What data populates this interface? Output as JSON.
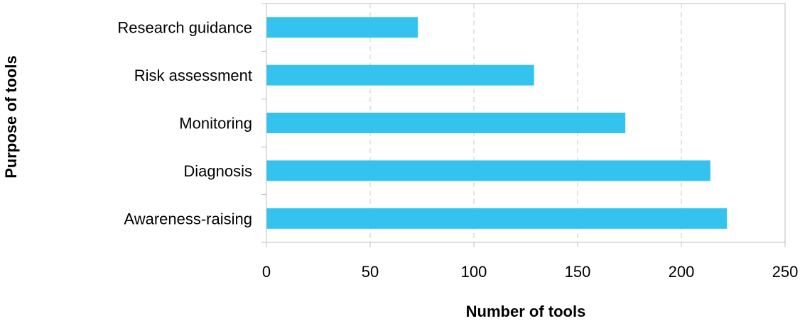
{
  "chart_data": {
    "type": "bar",
    "orientation": "horizontal",
    "title": "",
    "xlabel": "Number of tools",
    "ylabel": "Purpose of tools",
    "categories": [
      "Research guidance",
      "Risk assessment",
      "Monitoring",
      "Diagnosis",
      "Awareness-raising"
    ],
    "values": [
      73,
      129,
      173,
      214,
      222
    ],
    "xlim": [
      0,
      250
    ],
    "xticks": [
      0,
      50,
      100,
      150,
      200,
      250
    ],
    "grid": "vertical dashed",
    "legend": "none",
    "bar_color": "#33C3EE",
    "gridline_color": "#C8C8C8",
    "frame_color": "#BFBFBF"
  }
}
